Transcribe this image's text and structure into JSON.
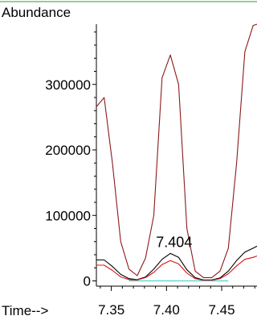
{
  "chart_data": {
    "type": "line",
    "ylabel": "Abundance",
    "xlabel": "Time-->",
    "xlim": [
      7.335,
      7.482
    ],
    "ylim": [
      -8000,
      392000
    ],
    "x_ticks": [
      7.35,
      7.4,
      7.45
    ],
    "x_tick_labels": [
      "7.35",
      "7.40",
      "7.45"
    ],
    "y_ticks": [
      0,
      100000,
      200000,
      300000
    ],
    "y_tick_labels": [
      "0",
      "100000",
      "200000",
      "300000"
    ],
    "grid": false,
    "series": [
      {
        "color": "#8b1a1a",
        "x": [
          7.336,
          7.3435,
          7.351,
          7.3585,
          7.366,
          7.3735,
          7.381,
          7.3885,
          7.396,
          7.4035,
          7.411,
          7.4185,
          7.426,
          7.4335,
          7.441,
          7.4485,
          7.456,
          7.4635,
          7.471,
          7.4785,
          7.482
        ],
        "values": [
          265000,
          280000,
          180000,
          60000,
          18000,
          8000,
          35000,
          100000,
          310000,
          345000,
          300000,
          80000,
          15000,
          5000,
          5000,
          15000,
          50000,
          180000,
          350000,
          390000,
          392000
        ]
      },
      {
        "color": "#000000",
        "x": [
          7.336,
          7.3435,
          7.351,
          7.3585,
          7.366,
          7.3735,
          7.381,
          7.3885,
          7.396,
          7.4035,
          7.411,
          7.4185,
          7.426,
          7.4335,
          7.441,
          7.4485,
          7.456,
          7.4635,
          7.471,
          7.4785,
          7.482
        ],
        "values": [
          32000,
          32000,
          22000,
          10000,
          3500,
          2000,
          6000,
          18000,
          33000,
          42000,
          36000,
          17000,
          5000,
          1500,
          1500,
          4500,
          15000,
          31000,
          44000,
          50000,
          53000
        ]
      },
      {
        "color": "#e01010",
        "x": [
          7.336,
          7.3435,
          7.351,
          7.3585,
          7.366,
          7.3735,
          7.381,
          7.3885,
          7.396,
          7.4035,
          7.411,
          7.4185,
          7.426,
          7.4335,
          7.441,
          7.4485,
          7.456,
          7.4635,
          7.471,
          7.4785,
          7.482
        ],
        "values": [
          24000,
          24000,
          16000,
          6000,
          2000,
          1500,
          5000,
          13000,
          25000,
          31000,
          26000,
          12000,
          3500,
          1000,
          1000,
          3500,
          11000,
          23000,
          33000,
          36000,
          38000
        ]
      },
      {
        "color": "#33cccc",
        "x": [
          7.366,
          7.456
        ],
        "values": [
          0,
          0
        ]
      }
    ],
    "annotations": [
      {
        "text": "7.404",
        "x": 7.404,
        "y": 42000
      }
    ]
  },
  "colors": {
    "top_rule": "#6cc07a",
    "axis": "#000000"
  }
}
